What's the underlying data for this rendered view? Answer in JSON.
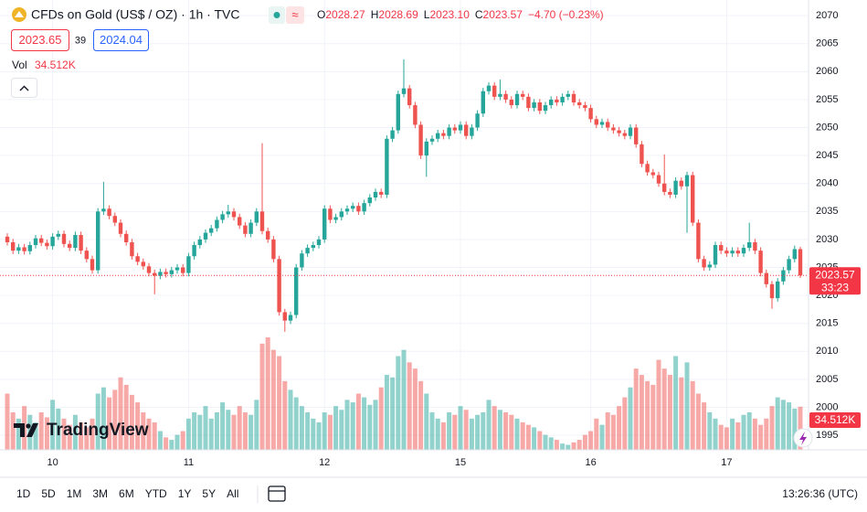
{
  "chart_data": {
    "type": "candlestick",
    "title": "CFDs on Gold (US$ / OZ) · 1h · TVC",
    "header_labels": {
      "open": "O",
      "high": "H",
      "low": "L",
      "close": "C"
    },
    "header_value_labels": {
      "low": "2023.10"
    },
    "change": "−4.70 (−0.23%)",
    "bid": 2023.65,
    "spread": 39,
    "ask": 2024.04,
    "volume_title": "Vol",
    "volume_value_label": "34.512K",
    "countdown": "33:23",
    "brand": "TradingView",
    "clock": "13:26:36 (UTC)",
    "timeframes": [
      "1D",
      "5D",
      "1M",
      "3M",
      "6M",
      "YTD",
      "1Y",
      "5Y",
      "All"
    ],
    "up_color": "#26a69a",
    "down_color": "#ef5350",
    "ylim": [
      1992.4,
      2072.8
    ],
    "yticks": [
      1995,
      2000,
      2005,
      2010,
      2015,
      2020,
      2025,
      2030,
      2035,
      2040,
      2045,
      2050,
      2055,
      2060,
      2065,
      2070
    ],
    "grid": true,
    "categories": [
      null,
      null,
      null,
      null,
      null,
      null,
      null,
      null,
      "10",
      null,
      null,
      null,
      null,
      null,
      null,
      null,
      null,
      null,
      null,
      null,
      null,
      null,
      null,
      null,
      null,
      null,
      null,
      null,
      null,
      null,
      null,
      null,
      "11",
      null,
      null,
      null,
      null,
      null,
      null,
      null,
      null,
      null,
      null,
      null,
      null,
      null,
      null,
      null,
      null,
      null,
      null,
      null,
      null,
      null,
      null,
      null,
      "12",
      null,
      null,
      null,
      null,
      null,
      null,
      null,
      null,
      null,
      null,
      null,
      null,
      null,
      null,
      null,
      null,
      null,
      null,
      null,
      null,
      null,
      null,
      null,
      "15",
      null,
      null,
      null,
      null,
      null,
      null,
      null,
      null,
      null,
      null,
      null,
      null,
      null,
      null,
      null,
      null,
      null,
      null,
      null,
      null,
      null,
      null,
      "16",
      null,
      null,
      null,
      null,
      null,
      null,
      null,
      null,
      null,
      null,
      null,
      null,
      null,
      null,
      null,
      null,
      null,
      null,
      null,
      null,
      null,
      null,
      null,
      "17",
      null,
      null,
      null,
      null,
      null,
      null,
      null,
      null,
      null,
      null,
      null,
      null,
      null
    ],
    "open": [
      2030.5,
      2029.5,
      2028.0,
      2028.6,
      2027.9,
      2029.0,
      2030.2,
      2029.4,
      2028.8,
      2030.5,
      2031.0,
      2029.2,
      2028.5,
      2030.8,
      2028.0,
      2026.5,
      2024.5,
      2035.0,
      2035.5,
      2034.2,
      2033.0,
      2031.0,
      2029.5,
      2027.0,
      2026.0,
      2025.2,
      2024.0,
      2023.5,
      2024.2,
      2023.8,
      2024.5,
      2025.0,
      2024.0,
      2027.0,
      2029.0,
      2030.0,
      2031.2,
      2032.0,
      2033.5,
      2034.5,
      2035.0,
      2034.0,
      2032.5,
      2031.0,
      2033.0,
      2035.0,
      2031.5,
      2030.0,
      2026.5,
      2017.0,
      2015.5,
      2016.5,
      2025.0,
      2027.5,
      2028.5,
      2029.0,
      2030.0,
      2035.5,
      2033.5,
      2034.0,
      2035.0,
      2035.5,
      2036.0,
      2035.0,
      2036.5,
      2037.5,
      2038.5,
      2038.0,
      2048.0,
      2049.5,
      2056.0,
      2057.0,
      2054.0,
      2050.5,
      2045.0,
      2047.5,
      2048.0,
      2049.0,
      2048.5,
      2050.0,
      2049.5,
      2050.5,
      2048.5,
      2050.0,
      2052.5,
      2056.5,
      2057.5,
      2055.5,
      2056.0,
      2055.0,
      2054.0,
      2056.0,
      2055.5,
      2053.5,
      2054.5,
      2053.0,
      2054.0,
      2055.0,
      2054.5,
      2055.5,
      2056.0,
      2054.5,
      2054.0,
      2053.5,
      2051.5,
      2050.5,
      2051.0,
      2050.0,
      2049.5,
      2049.0,
      2048.5,
      2050.0,
      2047.0,
      2043.5,
      2042.0,
      2041.5,
      2040.0,
      2038.5,
      2038.0,
      2040.5,
      2039.5,
      2041.5,
      2033.0,
      2026.5,
      2025.0,
      2025.5,
      2029.0,
      2028.0,
      2027.5,
      2028.0,
      2027.5,
      2028.5,
      2029.5,
      2028.0,
      2024.0,
      2022.0,
      2019.5,
      2022.5,
      2024.5,
      2026.5,
      2028.27
    ],
    "high": [
      2031.1,
      2030.1,
      2029.2,
      2029.2,
      2029.6,
      2030.8,
      2030.8,
      2030.0,
      2031.1,
      2031.6,
      2031.6,
      2029.8,
      2031.4,
      2031.4,
      2028.6,
      2027.1,
      2035.6,
      2040.3,
      2036.1,
      2034.8,
      2033.6,
      2031.6,
      2030.1,
      2027.6,
      2026.6,
      2025.8,
      2024.6,
      2024.8,
      2024.8,
      2025.1,
      2025.6,
      2025.6,
      2027.6,
      2029.6,
      2030.6,
      2031.8,
      2032.6,
      2034.1,
      2035.1,
      2036.2,
      2035.6,
      2034.6,
      2033.1,
      2033.6,
      2035.6,
      2047.2,
      2032.1,
      2030.6,
      2027.1,
      2017.6,
      2017.1,
      2025.6,
      2028.1,
      2029.1,
      2029.6,
      2030.6,
      2036.1,
      2036.1,
      2034.6,
      2035.6,
      2036.1,
      2036.6,
      2036.6,
      2037.1,
      2038.1,
      2039.1,
      2039.1,
      2048.6,
      2050.1,
      2056.6,
      2062.2,
      2057.6,
      2054.6,
      2051.1,
      2048.1,
      2048.6,
      2049.6,
      2049.6,
      2050.6,
      2050.6,
      2051.1,
      2051.1,
      2050.6,
      2053.1,
      2057.1,
      2058.1,
      2058.1,
      2058.6,
      2056.6,
      2055.6,
      2056.6,
      2056.6,
      2056.1,
      2055.1,
      2055.1,
      2054.6,
      2055.6,
      2055.6,
      2056.1,
      2056.6,
      2056.6,
      2055.1,
      2054.6,
      2054.1,
      2052.1,
      2051.6,
      2051.6,
      2050.6,
      2050.1,
      2049.6,
      2050.6,
      2050.6,
      2047.6,
      2044.1,
      2042.6,
      2042.1,
      2045.2,
      2039.1,
      2041.1,
      2041.1,
      2042.1,
      2042.1,
      2033.6,
      2027.1,
      2026.1,
      2029.6,
      2029.6,
      2028.6,
      2028.6,
      2028.6,
      2029.1,
      2033.0,
      2030.1,
      2028.6,
      2024.6,
      2022.6,
      2023.1,
      2025.1,
      2027.1,
      2028.9,
      2028.69
    ],
    "low": [
      2028.9,
      2027.4,
      2027.4,
      2027.3,
      2027.3,
      2028.4,
      2028.8,
      2028.2,
      2028.2,
      2029.9,
      2028.6,
      2027.9,
      2027.9,
      2027.4,
      2025.9,
      2023.9,
      2023.9,
      2034.4,
      2033.6,
      2032.4,
      2030.4,
      2028.9,
      2026.4,
      2025.4,
      2024.6,
      2023.4,
      2020.2,
      2022.9,
      2023.2,
      2023.2,
      2023.9,
      2023.4,
      2023.4,
      2026.4,
      2028.4,
      2029.4,
      2030.6,
      2031.4,
      2032.9,
      2033.9,
      2033.4,
      2031.9,
      2030.4,
      2030.4,
      2032.4,
      2030.9,
      2029.4,
      2025.9,
      2016.4,
      2013.5,
      2014.9,
      2015.9,
      2024.4,
      2026.9,
      2027.9,
      2028.4,
      2029.4,
      2032.9,
      2032.9,
      2033.4,
      2034.4,
      2034.9,
      2034.4,
      2034.4,
      2035.9,
      2036.9,
      2037.4,
      2037.4,
      2047.4,
      2048.9,
      2055.4,
      2053.4,
      2049.9,
      2044.4,
      2041.2,
      2046.9,
      2047.4,
      2047.9,
      2047.9,
      2048.9,
      2048.9,
      2047.9,
      2047.9,
      2049.4,
      2051.9,
      2055.9,
      2054.9,
      2054.9,
      2054.4,
      2053.4,
      2053.4,
      2054.9,
      2052.9,
      2052.9,
      2052.4,
      2052.4,
      2053.4,
      2053.9,
      2053.9,
      2054.9,
      2053.9,
      2053.4,
      2052.9,
      2050.9,
      2049.9,
      2049.9,
      2049.4,
      2048.9,
      2048.4,
      2047.9,
      2047.9,
      2046.4,
      2042.9,
      2041.4,
      2040.9,
      2039.4,
      2037.9,
      2037.4,
      2037.4,
      2038.9,
      2031.2,
      2032.4,
      2025.9,
      2024.4,
      2024.4,
      2024.9,
      2027.4,
      2026.9,
      2026.9,
      2026.9,
      2026.9,
      2027.9,
      2027.4,
      2023.4,
      2021.4,
      2017.6,
      2018.9,
      2021.9,
      2023.9,
      2025.9,
      2023.1
    ],
    "close": [
      2029.5,
      2028.0,
      2028.6,
      2027.9,
      2029.0,
      2030.2,
      2029.4,
      2028.8,
      2030.5,
      2031.0,
      2029.2,
      2028.5,
      2030.8,
      2028.0,
      2026.5,
      2024.5,
      2035.0,
      2035.5,
      2034.2,
      2033.0,
      2031.0,
      2029.5,
      2027.0,
      2026.0,
      2025.2,
      2024.0,
      2023.5,
      2024.2,
      2023.8,
      2024.5,
      2025.0,
      2024.0,
      2027.0,
      2029.0,
      2030.0,
      2031.2,
      2032.0,
      2033.5,
      2034.5,
      2035.0,
      2034.0,
      2032.5,
      2031.0,
      2033.0,
      2035.0,
      2031.5,
      2030.0,
      2026.5,
      2017.0,
      2015.5,
      2016.5,
      2025.0,
      2027.5,
      2028.5,
      2029.0,
      2030.0,
      2035.5,
      2033.5,
      2034.0,
      2035.0,
      2035.5,
      2036.0,
      2035.0,
      2036.5,
      2037.5,
      2038.5,
      2038.0,
      2048.0,
      2049.5,
      2056.0,
      2057.0,
      2054.0,
      2050.5,
      2045.0,
      2047.5,
      2048.0,
      2049.0,
      2048.5,
      2050.0,
      2049.5,
      2050.5,
      2048.5,
      2050.0,
      2052.5,
      2056.5,
      2057.5,
      2055.5,
      2056.0,
      2055.0,
      2054.0,
      2056.0,
      2055.5,
      2053.5,
      2054.5,
      2053.0,
      2054.0,
      2055.0,
      2054.5,
      2055.5,
      2056.0,
      2054.5,
      2054.0,
      2053.5,
      2051.5,
      2050.5,
      2051.0,
      2050.0,
      2049.5,
      2049.0,
      2048.5,
      2050.0,
      2047.0,
      2043.5,
      2042.0,
      2041.5,
      2040.0,
      2038.5,
      2038.0,
      2040.5,
      2039.5,
      2041.5,
      2033.0,
      2026.5,
      2025.0,
      2025.5,
      2029.0,
      2028.0,
      2027.5,
      2028.0,
      2027.5,
      2028.5,
      2029.5,
      2028.0,
      2024.0,
      2022.0,
      2019.5,
      2022.5,
      2024.5,
      2026.5,
      2028.27,
      2023.57
    ],
    "volume": [
      45000,
      30000,
      25000,
      35000,
      28000,
      22000,
      30000,
      26000,
      40000,
      33000,
      25000,
      20000,
      28000,
      22000,
      18000,
      25000,
      45000,
      50000,
      42000,
      48000,
      58000,
      52000,
      44000,
      38000,
      30000,
      25000,
      22000,
      15000,
      10000,
      8000,
      12000,
      15000,
      25000,
      30000,
      28000,
      35000,
      25000,
      30000,
      38000,
      32000,
      28000,
      35000,
      30000,
      28000,
      40000,
      85000,
      90000,
      80000,
      75000,
      55000,
      48000,
      42000,
      35000,
      30000,
      25000,
      22000,
      30000,
      28000,
      35000,
      32000,
      40000,
      38000,
      45000,
      42000,
      36000,
      40000,
      50000,
      60000,
      58000,
      75000,
      80000,
      70000,
      65000,
      55000,
      45000,
      30000,
      25000,
      22000,
      30000,
      28000,
      35000,
      32000,
      25000,
      28000,
      30000,
      40000,
      35000,
      32000,
      30000,
      28000,
      25000,
      22000,
      20000,
      18000,
      15000,
      12000,
      10000,
      8000,
      5000,
      4000,
      6000,
      8000,
      12000,
      15000,
      25000,
      20000,
      30000,
      28000,
      35000,
      42000,
      50000,
      65000,
      60000,
      55000,
      52000,
      72000,
      65000,
      60000,
      75000,
      58000,
      70000,
      55000,
      45000,
      38000,
      30000,
      25000,
      20000,
      18000,
      25000,
      22000,
      28000,
      30000,
      25000,
      20000,
      25000,
      35000,
      42000,
      40000,
      38000,
      33000,
      34512
    ]
  }
}
